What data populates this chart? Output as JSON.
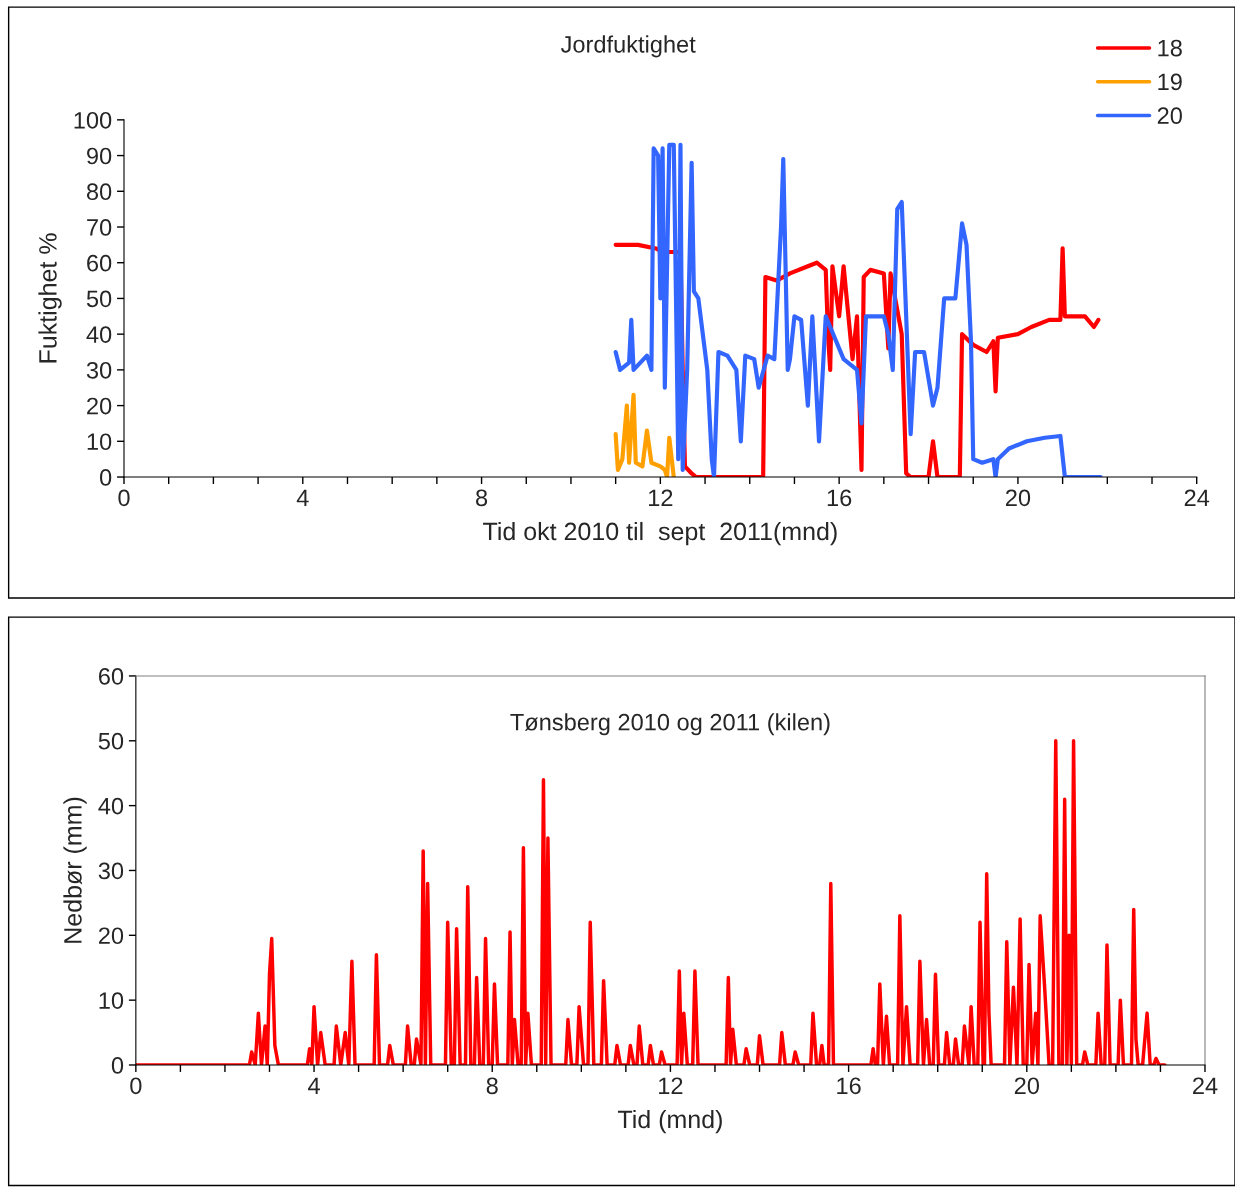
{
  "chart_data": [
    {
      "type": "line",
      "title": "Jordfuktighet",
      "xlabel": "Tid okt 2010 til  sept  2011(mnd)",
      "ylabel": "Fuktighet %",
      "xlim": [
        0,
        24
      ],
      "ylim": [
        0,
        100
      ],
      "xticks": [
        0,
        {
          "value": 1,
          "label": null
        },
        {
          "value": 2,
          "label": null
        },
        {
          "value": 3,
          "label": null
        },
        4,
        {
          "value": 5,
          "label": null
        },
        {
          "value": 6,
          "label": null
        },
        {
          "value": 7,
          "label": null
        },
        8,
        {
          "value": 9,
          "label": null
        },
        {
          "value": 10,
          "label": null
        },
        {
          "value": 11,
          "label": null
        },
        12,
        {
          "value": 13,
          "label": null
        },
        {
          "value": 14,
          "label": null
        },
        {
          "value": 15,
          "label": null
        },
        16,
        {
          "value": 17,
          "label": null
        },
        {
          "value": 18,
          "label": null
        },
        {
          "value": 19,
          "label": null
        },
        20,
        {
          "value": 21,
          "label": null
        },
        {
          "value": 22,
          "label": null
        },
        {
          "value": 23,
          "label": null
        },
        24
      ],
      "yticks": [
        0,
        10,
        20,
        30,
        40,
        50,
        60,
        70,
        80,
        90,
        100
      ],
      "grid": false,
      "legend": "top right",
      "line_style": "solid",
      "series": [
        {
          "name": "18",
          "color": "#ff0000",
          "x": [
            11.0,
            11.5,
            11.9,
            12.05,
            12.45,
            12.5,
            12.55,
            12.7,
            12.8,
            14.3,
            14.35,
            14.6,
            14.9,
            15.3,
            15.5,
            15.7,
            15.75,
            15.8,
            15.85,
            16.0,
            16.1,
            16.3,
            16.4,
            16.5,
            16.55,
            16.7,
            17.0,
            17.1,
            17.15,
            17.4,
            17.5,
            17.6,
            18.0,
            18.1,
            18.2,
            18.5,
            18.7,
            18.75,
            19.0,
            19.3,
            19.45,
            19.5,
            19.55,
            20.0,
            20.3,
            20.7,
            20.95,
            21.0,
            21.05,
            21.5,
            21.7,
            21.8
          ],
          "values": [
            65,
            65,
            64,
            63,
            63,
            30,
            3,
            1,
            0,
            0,
            56,
            55,
            57,
            59,
            60,
            58,
            40,
            30,
            59,
            45,
            59,
            33,
            45,
            2,
            56,
            58,
            57,
            36,
            57,
            40,
            1,
            0,
            0,
            10,
            0,
            0,
            0,
            40,
            37,
            35,
            38,
            24,
            39,
            40,
            42,
            44,
            44,
            64,
            45,
            45,
            42,
            44
          ]
        },
        {
          "name": "19",
          "color": "#ffa000",
          "x": [
            11.0,
            11.05,
            11.15,
            11.25,
            11.3,
            11.4,
            11.45,
            11.6,
            11.7,
            11.8,
            12.0,
            12.1,
            12.15,
            12.2,
            12.3
          ],
          "values": [
            12,
            2,
            5,
            20,
            4,
            23,
            4,
            3,
            13,
            4,
            3,
            2,
            0,
            11,
            0
          ]
        },
        {
          "name": "20",
          "color": "#3366ff",
          "x": [
            11.0,
            11.1,
            11.3,
            11.35,
            11.4,
            11.7,
            11.8,
            11.85,
            11.95,
            12.0,
            12.05,
            12.1,
            12.2,
            12.3,
            12.35,
            12.4,
            12.45,
            12.5,
            12.6,
            12.7,
            12.75,
            12.85,
            12.95,
            13.05,
            13.15,
            13.2,
            13.3,
            13.5,
            13.7,
            13.8,
            13.9,
            14.1,
            14.2,
            14.4,
            14.55,
            14.7,
            14.75,
            14.85,
            14.9,
            15.0,
            15.15,
            15.3,
            15.4,
            15.55,
            15.7,
            16.1,
            16.4,
            16.5,
            16.6,
            17.0,
            17.1,
            17.2,
            17.3,
            17.4,
            17.5,
            17.6,
            17.7,
            17.9,
            18.1,
            18.2,
            18.35,
            18.45,
            18.6,
            18.75,
            18.85,
            18.95,
            19.0,
            19.2,
            19.45,
            19.5,
            19.55,
            19.8,
            20.2,
            20.6,
            20.95,
            21.05,
            21.85
          ],
          "values": [
            35,
            30,
            32,
            44,
            30,
            34,
            30,
            92,
            90,
            50,
            92,
            25,
            93,
            93,
            50,
            5,
            93,
            2,
            30,
            88,
            52,
            50,
            40,
            30,
            5,
            0,
            35,
            34,
            30,
            10,
            34,
            33,
            25,
            34,
            33,
            70,
            89,
            30,
            33,
            45,
            44,
            20,
            45,
            10,
            45,
            33,
            30,
            15,
            45,
            45,
            40,
            30,
            75,
            77,
            45,
            12,
            35,
            35,
            20,
            25,
            50,
            50,
            50,
            71,
            65,
            38,
            5,
            4,
            5,
            0,
            5,
            8,
            10,
            11,
            11.5,
            0,
            0
          ]
        }
      ]
    },
    {
      "type": "line",
      "title": "Tønsberg 2010 og 2011 (kilen)",
      "xlabel": "Tid (mnd)",
      "ylabel": "Nedbør (mm)",
      "xlim": [
        0,
        24
      ],
      "ylim": [
        0,
        60
      ],
      "xticks": [
        0,
        {
          "value": 1,
          "label": null
        },
        {
          "value": 2,
          "label": null
        },
        {
          "value": 3,
          "label": null
        },
        4,
        {
          "value": 5,
          "label": null
        },
        {
          "value": 6,
          "label": null
        },
        {
          "value": 7,
          "label": null
        },
        8,
        {
          "value": 9,
          "label": null
        },
        {
          "value": 10,
          "label": null
        },
        {
          "value": 11,
          "label": null
        },
        12,
        {
          "value": 13,
          "label": null
        },
        {
          "value": 14,
          "label": null
        },
        {
          "value": 15,
          "label": null
        },
        16,
        {
          "value": 17,
          "label": null
        },
        {
          "value": 18,
          "label": null
        },
        {
          "value": 19,
          "label": null
        },
        20,
        {
          "value": 21,
          "label": null
        },
        {
          "value": 22,
          "label": null
        },
        {
          "value": 23,
          "label": null
        },
        24
      ],
      "yticks": [
        0,
        10,
        20,
        30,
        40,
        50,
        60
      ],
      "grid": false,
      "line_style": "solid",
      "series": [
        {
          "color": "#ff0000",
          "x": [
            0,
            2.55,
            2.6,
            2.68,
            2.75,
            2.82,
            2.9,
            2.95,
            3.0,
            3.05,
            3.12,
            3.2,
            3.85,
            3.9,
            3.95,
            4.0,
            4.08,
            4.15,
            4.25,
            4.45,
            4.5,
            4.6,
            4.7,
            4.78,
            4.85,
            4.92,
            5.35,
            5.4,
            5.47,
            5.65,
            5.7,
            5.78,
            6.05,
            6.1,
            6.18,
            6.25,
            6.3,
            6.4,
            6.45,
            6.5,
            6.55,
            6.62,
            6.95,
            7.0,
            7.08,
            7.15,
            7.2,
            7.28,
            7.4,
            7.45,
            7.52,
            7.6,
            7.65,
            7.72,
            7.8,
            7.85,
            7.92,
            8.0,
            8.05,
            8.12,
            8.35,
            8.4,
            8.45,
            8.5,
            8.58,
            8.65,
            8.7,
            8.75,
            8.8,
            8.88,
            9.1,
            9.15,
            9.2,
            9.25,
            9.32,
            9.65,
            9.7,
            9.78,
            9.9,
            9.95,
            10.05,
            10.15,
            10.2,
            10.28,
            10.45,
            10.5,
            10.58,
            10.75,
            10.8,
            10.88,
            11.05,
            11.1,
            11.18,
            11.25,
            11.3,
            11.38,
            11.5,
            11.55,
            11.62,
            11.75,
            11.8,
            11.88,
            12.15,
            12.2,
            12.25,
            12.3,
            12.38,
            12.5,
            12.55,
            12.62,
            13.25,
            13.3,
            13.35,
            13.4,
            13.48,
            13.65,
            13.7,
            13.78,
            13.95,
            14.0,
            14.08,
            14.45,
            14.5,
            14.58,
            14.75,
            14.8,
            14.88,
            15.15,
            15.2,
            15.28,
            15.35,
            15.4,
            15.45,
            15.55,
            15.6,
            15.66,
            16.5,
            16.55,
            16.6,
            16.65,
            16.7,
            16.78,
            16.85,
            16.92,
            17.1,
            17.15,
            17.22,
            17.3,
            17.38,
            17.55,
            17.6,
            17.68,
            17.75,
            17.82,
            17.9,
            17.95,
            18.02,
            18.15,
            18.2,
            18.27,
            18.35,
            18.4,
            18.47,
            18.55,
            18.6,
            18.7,
            18.75,
            18.82,
            18.9,
            18.95,
            19.02,
            19.05,
            19.1,
            19.15,
            19.2,
            19.5,
            19.55,
            19.62,
            19.7,
            19.78,
            19.85,
            19.92,
            20.0,
            20.05,
            20.12,
            20.2,
            20.25,
            20.3,
            20.4,
            20.5,
            20.58,
            20.65,
            20.72,
            20.8,
            20.85,
            20.9,
            20.95,
            21.0,
            21.05,
            21.12,
            21.25,
            21.3,
            21.37,
            21.55,
            21.6,
            21.67,
            21.75,
            21.8,
            21.87,
            22.05,
            22.1,
            22.17,
            22.35,
            22.4,
            22.45,
            22.5,
            22.6,
            22.7,
            22.77,
            22.85,
            22.9,
            22.97,
            23.1
          ],
          "values": [
            0,
            0,
            2,
            0,
            8,
            0,
            6,
            0,
            14,
            19.5,
            3,
            0,
            0,
            2.5,
            0,
            9,
            0,
            5,
            0,
            0,
            6,
            0,
            5,
            0,
            16,
            0,
            0,
            17,
            0,
            0,
            3,
            0,
            0,
            6,
            0,
            0,
            4,
            0,
            33,
            0,
            28,
            0,
            0,
            22,
            0,
            0,
            21,
            0,
            0,
            27.5,
            0,
            0,
            13.5,
            0,
            0,
            19.5,
            0,
            0,
            12.5,
            0,
            0,
            20.5,
            0,
            7,
            0,
            0,
            33.5,
            0,
            8,
            0,
            0,
            44,
            0,
            35,
            0,
            0,
            7,
            0,
            0,
            9,
            0,
            0,
            22,
            0,
            0,
            13,
            0,
            0,
            3,
            0,
            0,
            3,
            0,
            0,
            6,
            0,
            0,
            3,
            0,
            0,
            2,
            0,
            0,
            14.5,
            0,
            8,
            0,
            0,
            14.5,
            0,
            0,
            13.5,
            0,
            5.5,
            0,
            0,
            2.5,
            0,
            0,
            4.5,
            0,
            0,
            5,
            0,
            0,
            2,
            0,
            0,
            8,
            0,
            0,
            3,
            0,
            0,
            28,
            0,
            0,
            2.5,
            0,
            0,
            12.5,
            0,
            7.5,
            0,
            0,
            23,
            0,
            9,
            0,
            0,
            16,
            0,
            7,
            0,
            0,
            14,
            0,
            0,
            5,
            0,
            0,
            4,
            0,
            0,
            6,
            0,
            9,
            0,
            0,
            22,
            0,
            0,
            29.5,
            8,
            0,
            0,
            19,
            0,
            12,
            0,
            22.5,
            0,
            0,
            15.5,
            0,
            8,
            0,
            23,
            12,
            0,
            0,
            50,
            0,
            0,
            41,
            0,
            20,
            0,
            50,
            0,
            0,
            2,
            0,
            0,
            8,
            0,
            0,
            18.5,
            0,
            0,
            10,
            0,
            0,
            24,
            4,
            0,
            0,
            8,
            0,
            0,
            1,
            0,
            0
          ]
        }
      ]
    }
  ]
}
